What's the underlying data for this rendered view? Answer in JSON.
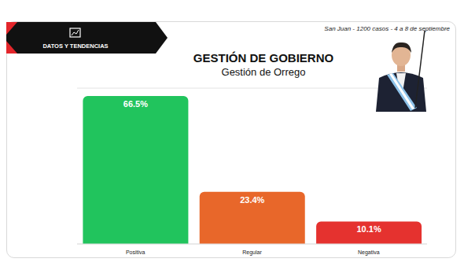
{
  "chart_data": {
    "type": "bar",
    "title": "GESTIÓN DE GOBIERNO",
    "subtitle": "Gestión de Orrego",
    "banner": "DATOS Y TENDENCIAS",
    "source": "San Juan - 1200 casos - 4 a 8 de septiembre",
    "categories": [
      "Positiva",
      "Regular",
      "Negativa"
    ],
    "values": [
      66.5,
      23.4,
      10.1
    ],
    "value_labels": [
      "66.5%",
      "23.4%",
      "10.1%"
    ],
    "colors": [
      "#21c45d",
      "#e8672a",
      "#e5322f"
    ],
    "ylim": [
      0,
      70
    ],
    "yticks": [
      0,
      10,
      20,
      30,
      40,
      50,
      60,
      70
    ],
    "grid": true,
    "data_labels": true,
    "tick_labels": "x"
  }
}
